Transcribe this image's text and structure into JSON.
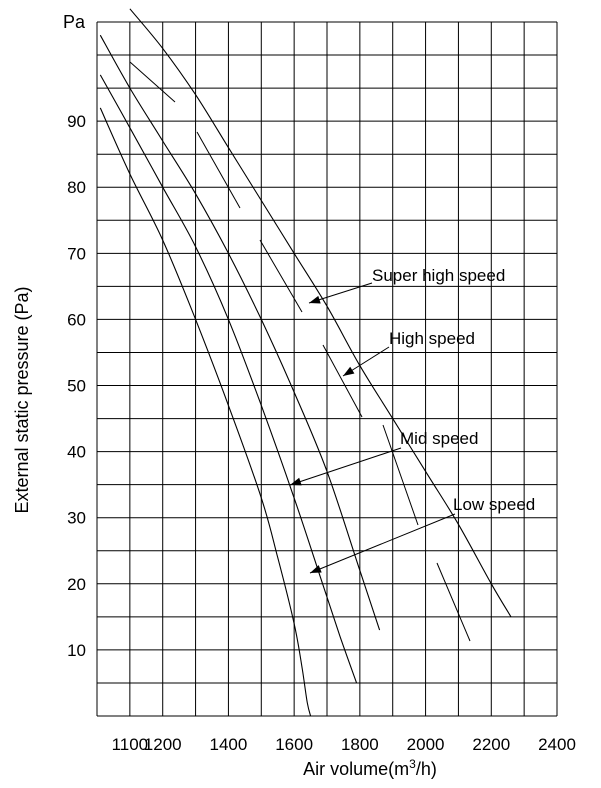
{
  "chart_data": {
    "type": "line",
    "title": "",
    "xlabel_prefix": "Air volume(m",
    "xlabel_sup": "3",
    "xlabel_suffix": "/h)",
    "ylabel": "External static pressure (Pa)",
    "y_unit_label": "Pa",
    "xlim": [
      1000,
      2400
    ],
    "ylim": [
      0,
      105
    ],
    "x_tick_labels": [
      {
        "value": 1100,
        "label": "1100"
      },
      {
        "value": 1200,
        "label": "1200"
      },
      {
        "value": 1400,
        "label": "1400"
      },
      {
        "value": 1600,
        "label": "1600"
      },
      {
        "value": 1800,
        "label": "1800"
      },
      {
        "value": 2000,
        "label": "2000"
      },
      {
        "value": 2200,
        "label": "2200"
      },
      {
        "value": 2400,
        "label": "2400"
      }
    ],
    "y_tick_labels": [
      {
        "value": 10,
        "label": "10"
      },
      {
        "value": 20,
        "label": "20"
      },
      {
        "value": 30,
        "label": "30"
      },
      {
        "value": 40,
        "label": "40"
      },
      {
        "value": 50,
        "label": "50"
      },
      {
        "value": 60,
        "label": "60"
      },
      {
        "value": 70,
        "label": "70"
      },
      {
        "value": 80,
        "label": "80"
      },
      {
        "value": 90,
        "label": "90"
      }
    ],
    "grid": true,
    "series": [
      {
        "name": "Low speed",
        "x": [
          1010,
          1100,
          1200,
          1300,
          1400,
          1500,
          1550,
          1600,
          1625,
          1640,
          1650
        ],
        "y": [
          92,
          82,
          72,
          60,
          47,
          33,
          24,
          14,
          7,
          2,
          0
        ]
      },
      {
        "name": "Mid speed",
        "x": [
          1010,
          1100,
          1200,
          1300,
          1400,
          1500,
          1600,
          1680,
          1740,
          1790
        ],
        "y": [
          97,
          89,
          80,
          71,
          60,
          47,
          33,
          21,
          12,
          5
        ]
      },
      {
        "name": "High speed",
        "x": [
          1010,
          1100,
          1200,
          1300,
          1400,
          1500,
          1600,
          1700,
          1800,
          1860
        ],
        "y": [
          103,
          95,
          87,
          79,
          70,
          60,
          49,
          37,
          22,
          13
        ]
      },
      {
        "name": "Super high speed",
        "x": [
          1100,
          1200,
          1300,
          1400,
          1500,
          1600,
          1700,
          1800,
          1900,
          2000,
          2100,
          2200,
          2260
        ],
        "y": [
          107,
          101,
          94,
          86,
          78,
          70,
          62,
          53,
          45,
          37,
          29,
          20,
          15
        ]
      }
    ]
  }
}
